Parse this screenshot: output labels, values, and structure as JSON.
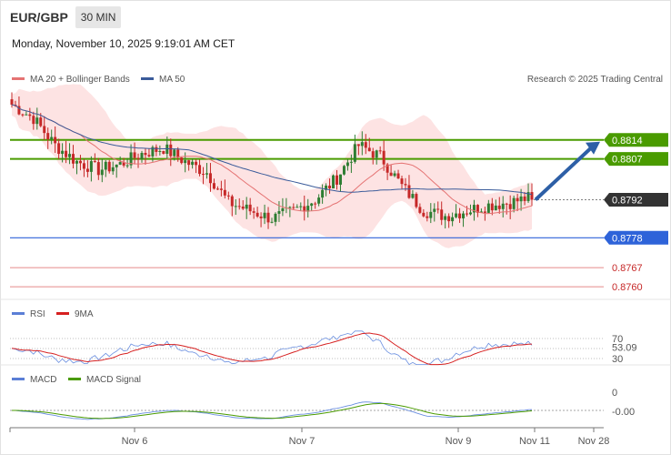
{
  "header": {
    "symbol": "EUR/GBP",
    "timeframe": "30 MIN",
    "datetime": "Monday, November 10, 2025 9:19:01 AM CET"
  },
  "legend": {
    "ma20": "MA 20 + Bollinger Bands",
    "ma50": "MA 50",
    "research": "Research © 2025 Trading Central",
    "rsi": "RSI",
    "rsi_ma": "9MA",
    "macd": "MACD",
    "macd_signal": "MACD Signal"
  },
  "colors": {
    "up": "#2e7d32",
    "down": "#c62828",
    "resistance": "#4a9b00",
    "support": "#2e63d9",
    "weak_support": "#e58a8a",
    "ma20": "#e57373",
    "ma50": "#3a5b9a",
    "band": "#fde0e0",
    "arrow": "#2d5fa6"
  },
  "chart_data": [
    {
      "type": "candlestick",
      "title": "EUR/GBP",
      "x_ticks": [
        "Nov 6",
        "Nov 7",
        "Nov 9",
        "Nov 11",
        "Nov 28"
      ],
      "last_price": 0.8792,
      "levels": [
        {
          "value": 0.8814,
          "kind": "resistance",
          "label": "0.8814"
        },
        {
          "value": 0.8807,
          "kind": "resistance",
          "label": "0.8807"
        },
        {
          "value": 0.8792,
          "kind": "last",
          "label": "0.8792"
        },
        {
          "value": 0.8778,
          "kind": "support",
          "label": "0.8778"
        },
        {
          "value": 0.8767,
          "kind": "support2",
          "label": "0.8767"
        },
        {
          "value": 0.876,
          "kind": "support2",
          "label": "0.8760"
        }
      ],
      "price_anchors": [
        0.8827,
        0.8822,
        0.8812,
        0.8806,
        0.8803,
        0.8805,
        0.8809,
        0.8811,
        0.8806,
        0.8802,
        0.8791,
        0.8788,
        0.8785,
        0.8788,
        0.8792,
        0.88,
        0.8812,
        0.8808,
        0.8797,
        0.8788,
        0.8786,
        0.8788,
        0.879,
        0.8791,
        0.8793
      ]
    },
    {
      "type": "line",
      "title": "RSI",
      "series": [
        {
          "name": "RSI"
        },
        {
          "name": "9MA"
        }
      ],
      "levels": [
        70,
        30
      ],
      "last_value": 53.09,
      "level_labels": [
        "70",
        "53.09",
        "30"
      ]
    },
    {
      "type": "line",
      "title": "MACD",
      "series": [
        {
          "name": "MACD"
        },
        {
          "name": "MACD Signal"
        }
      ],
      "levels": [
        0
      ],
      "last_value": -0.0,
      "level_labels": [
        "0",
        "-0.00"
      ]
    }
  ]
}
